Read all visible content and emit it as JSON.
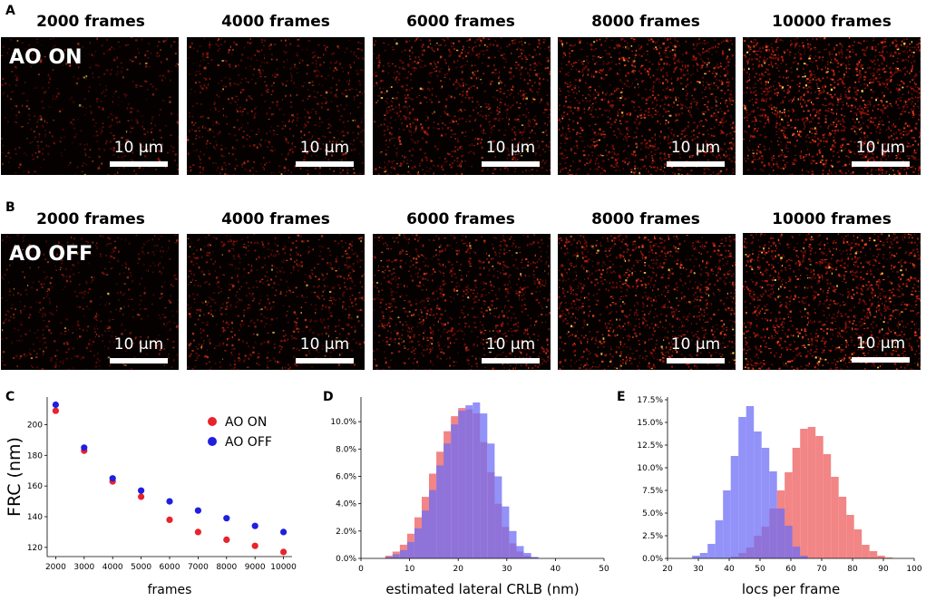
{
  "panels": {
    "a": {
      "letter": "A",
      "condition": "AO ON",
      "frame_titles": [
        "2000 frames",
        "4000 frames",
        "6000 frames",
        "8000 frames",
        "10000 frames"
      ],
      "scale_bar_label": "10 µm"
    },
    "b": {
      "letter": "B",
      "condition": "AO OFF",
      "frame_titles": [
        "2000 frames",
        "4000 frames",
        "6000 frames",
        "8000 frames",
        "10000 frames"
      ],
      "scale_bar_label": "10 µm"
    }
  },
  "colors": {
    "ao_on": "#e8232c",
    "ao_off": "#1f1fe0",
    "hist_red": "#f07070",
    "hist_blue": "#6e6ef5",
    "overlap": "#7a3fc4"
  },
  "chart_data": [
    {
      "panel": "C",
      "type": "scatter",
      "xlabel": "frames",
      "ylabel": "FRC (nm)",
      "xlim": [
        1700,
        10300
      ],
      "ylim": [
        114,
        218
      ],
      "xticks": [
        2000,
        3000,
        4000,
        5000,
        6000,
        7000,
        8000,
        9000,
        10000
      ],
      "yticks": [
        120,
        140,
        160,
        180,
        200
      ],
      "legend_position": "top-right",
      "x": [
        2000,
        3000,
        4000,
        5000,
        6000,
        7000,
        8000,
        9000,
        10000
      ],
      "series": [
        {
          "name": "AO ON",
          "color": "#e8232c",
          "values": [
            209,
            183,
            163,
            153,
            138,
            130,
            125,
            121,
            117
          ]
        },
        {
          "name": "AO OFF",
          "color": "#1f1fe0",
          "values": [
            213,
            185,
            165,
            157,
            150,
            144,
            139,
            134,
            130
          ]
        }
      ]
    },
    {
      "panel": "D",
      "type": "bar",
      "xlabel": "estimated lateral CRLB (nm)",
      "ylabel": "",
      "xlim": [
        0,
        50
      ],
      "ylim": [
        0,
        11.8
      ],
      "xticks": [
        0,
        10,
        20,
        30,
        40,
        50
      ],
      "yticks": [
        0,
        2,
        4,
        6,
        8,
        10
      ],
      "ytick_labels": [
        "0.0%",
        "2.0%",
        "4.0%",
        "6.0%",
        "8.0%",
        "10.0%"
      ],
      "bin_start": 5,
      "bin_width": 1.5,
      "series": [
        {
          "name": "AO ON",
          "color": "#f07070",
          "values": [
            0.2,
            0.5,
            1.0,
            1.8,
            3.0,
            4.5,
            6.2,
            7.8,
            9.3,
            10.4,
            11.0,
            10.9,
            10.6,
            8.5,
            6.3,
            4.0,
            2.3,
            1.1,
            0.5,
            0.2,
            0.1
          ]
        },
        {
          "name": "AO OFF",
          "color": "#6e6ef5",
          "values": [
            0.1,
            0.3,
            0.6,
            1.2,
            2.2,
            3.5,
            5.0,
            6.8,
            8.4,
            9.8,
            10.8,
            11.2,
            11.4,
            10.6,
            8.4,
            6.0,
            3.8,
            2.0,
            0.9,
            0.4,
            0.1
          ]
        }
      ]
    },
    {
      "panel": "E",
      "type": "bar",
      "xlabel": "locs per frame",
      "ylabel": "",
      "xlim": [
        20,
        100
      ],
      "ylim": [
        0,
        17.8
      ],
      "xticks": [
        20,
        30,
        40,
        50,
        60,
        70,
        80,
        90,
        100
      ],
      "yticks": [
        0,
        2.5,
        5,
        7.5,
        10,
        12.5,
        15,
        17.5
      ],
      "ytick_labels": [
        "0.0%",
        "2.5%",
        "5.0%",
        "7.5%",
        "10.0%",
        "12.5%",
        "15.0%",
        "17.5%"
      ],
      "bin_start": 28,
      "bin_width": 2.5,
      "series": [
        {
          "name": "AO ON",
          "color": "#f07070",
          "values": [
            0,
            0,
            0,
            0,
            0,
            0.2,
            0.6,
            1.2,
            2.5,
            3.5,
            5.5,
            7.5,
            9.5,
            12.2,
            14.3,
            14.5,
            13.5,
            11.5,
            9.0,
            6.8,
            4.8,
            3.2,
            1.5,
            0.8,
            0.3,
            0.1
          ]
        },
        {
          "name": "AO OFF",
          "color": "#6e6ef5",
          "values": [
            0.3,
            0.6,
            1.6,
            4.2,
            7.5,
            11.3,
            15.6,
            16.8,
            14.0,
            12.2,
            9.6,
            5.5,
            3.6,
            1.3,
            0.3,
            0,
            0,
            0,
            0,
            0,
            0,
            0,
            0,
            0,
            0,
            0
          ]
        }
      ]
    }
  ]
}
